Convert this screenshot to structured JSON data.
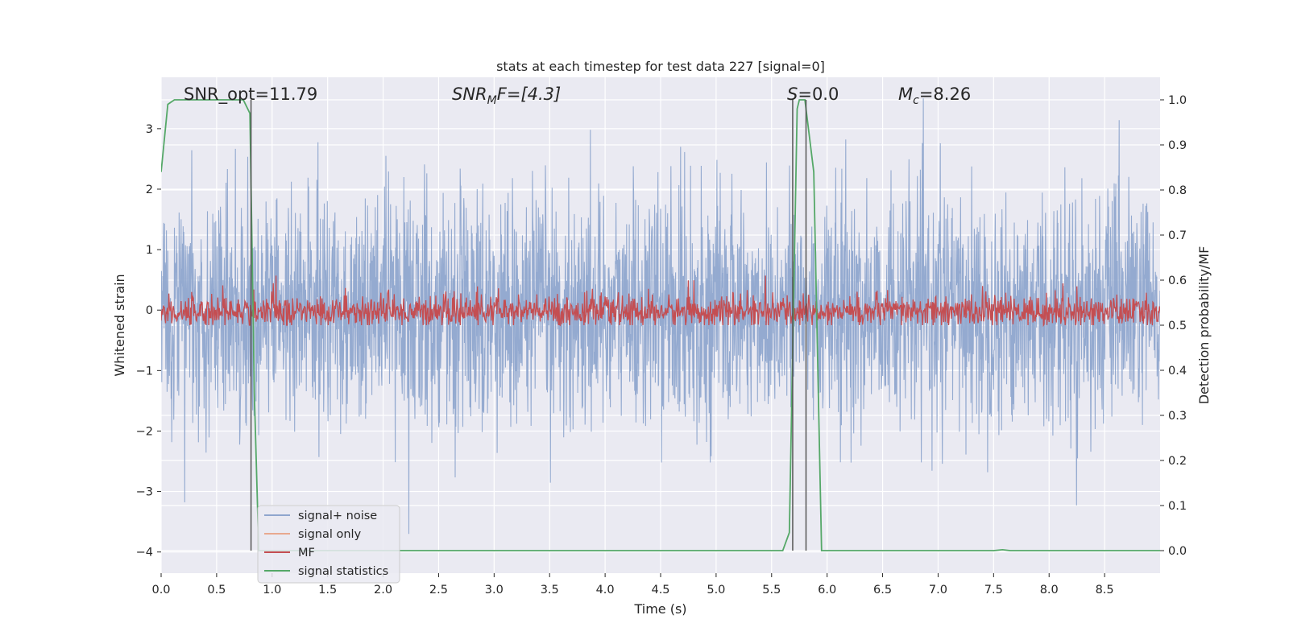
{
  "chart_data": {
    "type": "line",
    "title": "stats at each timestep for test data 227 [signal=0]",
    "xlabel": "Time (s)",
    "ylabel": "Whitened strain",
    "ylabel_right": "Detection probability/MF",
    "xlim": [
      0.0,
      9.0
    ],
    "ylim": [
      -4.35,
      3.85
    ],
    "ylim_right": [
      -0.05,
      1.05
    ],
    "x_ticks": [
      0.0,
      0.5,
      1.0,
      1.5,
      2.0,
      2.5,
      3.0,
      3.5,
      4.0,
      4.5,
      5.0,
      5.5,
      6.0,
      6.5,
      7.0,
      7.5,
      8.0,
      8.5
    ],
    "y_ticks": [
      3,
      2,
      1,
      0,
      -1,
      -2,
      -3,
      -4
    ],
    "y_tick_labels": [
      "3",
      "2",
      "1",
      "0",
      "−1",
      "−2",
      "−3",
      "−4"
    ],
    "y_ticks_right": [
      1.0,
      0.9,
      0.8,
      0.7,
      0.6,
      0.5,
      0.4,
      0.3,
      0.2,
      0.1,
      0.0
    ],
    "grid": true,
    "legend_position": "lower-left",
    "annotations": {
      "snr_opt": "SNR_opt=11.79",
      "snr_mf_label": "SNR",
      "snr_mf_sub": "M",
      "snr_mf_rest": "F=[4.3]",
      "s_label": "S",
      "s_rest": "=0.0",
      "mc_label": "M",
      "mc_sub": "c",
      "mc_rest": "=8.26"
    },
    "vertical_lines": [
      0.81,
      5.69,
      5.81
    ],
    "series": [
      {
        "name": "signal+ noise",
        "color": "#8fa6ce",
        "axis": "left",
        "noise": {
          "std": 0.95,
          "range": [
            -3.7,
            3.5
          ]
        }
      },
      {
        "name": "signal only",
        "color": "#e8a98f",
        "axis": "left",
        "values": [
          0,
          0
        ]
      },
      {
        "name": "MF",
        "color": "#c44e52",
        "axis": "right",
        "noise": {
          "base": 0.53,
          "range": [
            0.5,
            0.61
          ]
        }
      },
      {
        "name": "signal statistics",
        "color": "#55a868",
        "axis": "right",
        "x": [
          0.0,
          0.06,
          0.12,
          0.74,
          0.8,
          0.84,
          0.88,
          5.6,
          5.66,
          5.69,
          5.73,
          5.75,
          5.8,
          5.88,
          5.95,
          7.5,
          7.58,
          7.65,
          9.0
        ],
        "y": [
          0.84,
          0.99,
          1.0,
          1.0,
          0.97,
          0.35,
          0.0,
          0.0,
          0.04,
          0.45,
          0.98,
          1.0,
          1.0,
          0.84,
          0.0,
          0.0,
          0.002,
          0.0,
          0.0
        ]
      }
    ]
  }
}
